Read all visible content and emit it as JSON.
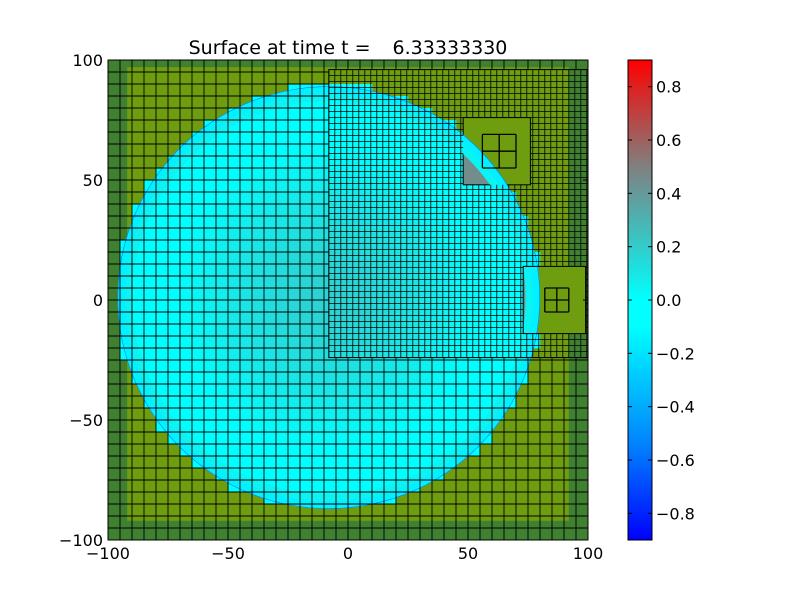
{
  "chart_data": {
    "type": "heatmap",
    "title_prefix": "Surface at time t =",
    "title_time": "6.33333330",
    "xlim": [
      -100,
      100
    ],
    "ylim": [
      -100,
      100
    ],
    "x_ticks": [
      -100,
      -50,
      0,
      50,
      100
    ],
    "y_ticks": [
      -100,
      -50,
      0,
      50,
      100
    ],
    "x_tick_labels": [
      "−100",
      "−50",
      "0",
      "50",
      "100"
    ],
    "y_tick_labels": [
      "−100",
      "−50",
      "0",
      "50",
      "100"
    ],
    "colorbar": {
      "vmin": -0.9,
      "vmax": 0.9,
      "ticks": [
        0.8,
        0.6,
        0.4,
        0.2,
        0.0,
        -0.2,
        -0.4,
        -0.6,
        -0.8
      ],
      "tick_labels": [
        "0.8",
        "0.6",
        "0.4",
        "0.2",
        "0.0",
        "−0.2",
        "−0.4",
        "−0.6",
        "−0.8"
      ],
      "colormap_stops": [
        {
          "value": -0.9,
          "color": "#0000ff"
        },
        {
          "value": -0.55,
          "color": "#0080ff"
        },
        {
          "value": -0.1,
          "color": "#00ffff"
        },
        {
          "value": 0.0,
          "color": "#00ffff"
        },
        {
          "value": 0.25,
          "color": "#40bfbf"
        },
        {
          "value": 0.5,
          "color": "#808080"
        },
        {
          "value": 0.7,
          "color": "#bf4040"
        },
        {
          "value": 0.9,
          "color": "#ff0000"
        }
      ]
    },
    "land_colors": {
      "dry_land": "#6e9e10",
      "coarse_land": "#3f8031"
    },
    "surface": {
      "wet_disk_center": [
        -8,
        1
      ],
      "wet_disk_radius": 88,
      "surface_value_center": 0.18,
      "surface_value_edge": -0.1
    },
    "grids": [
      {
        "level": 1,
        "x_range": [
          -100,
          100
        ],
        "y_range": [
          -100,
          100
        ],
        "cell_size": 5
      },
      {
        "level": 2,
        "x_range": [
          -8,
          100
        ],
        "y_range": [
          -24,
          96
        ],
        "cell_size": 2.5
      },
      {
        "level": 3,
        "x_range": [
          48,
          76
        ],
        "y_range": [
          48,
          76
        ],
        "cell_size": 7
      },
      {
        "level": 3,
        "x_range": [
          73,
          99
        ],
        "y_range": [
          -14,
          14
        ],
        "cell_size": 6.5
      }
    ],
    "fine_patches": [
      {
        "x_range": [
          56,
          70
        ],
        "y_range": [
          55,
          69
        ],
        "cell_size": 7
      },
      {
        "x_range": [
          82,
          92
        ],
        "y_range": [
          -5,
          5
        ],
        "cell_size": 5
      }
    ]
  }
}
